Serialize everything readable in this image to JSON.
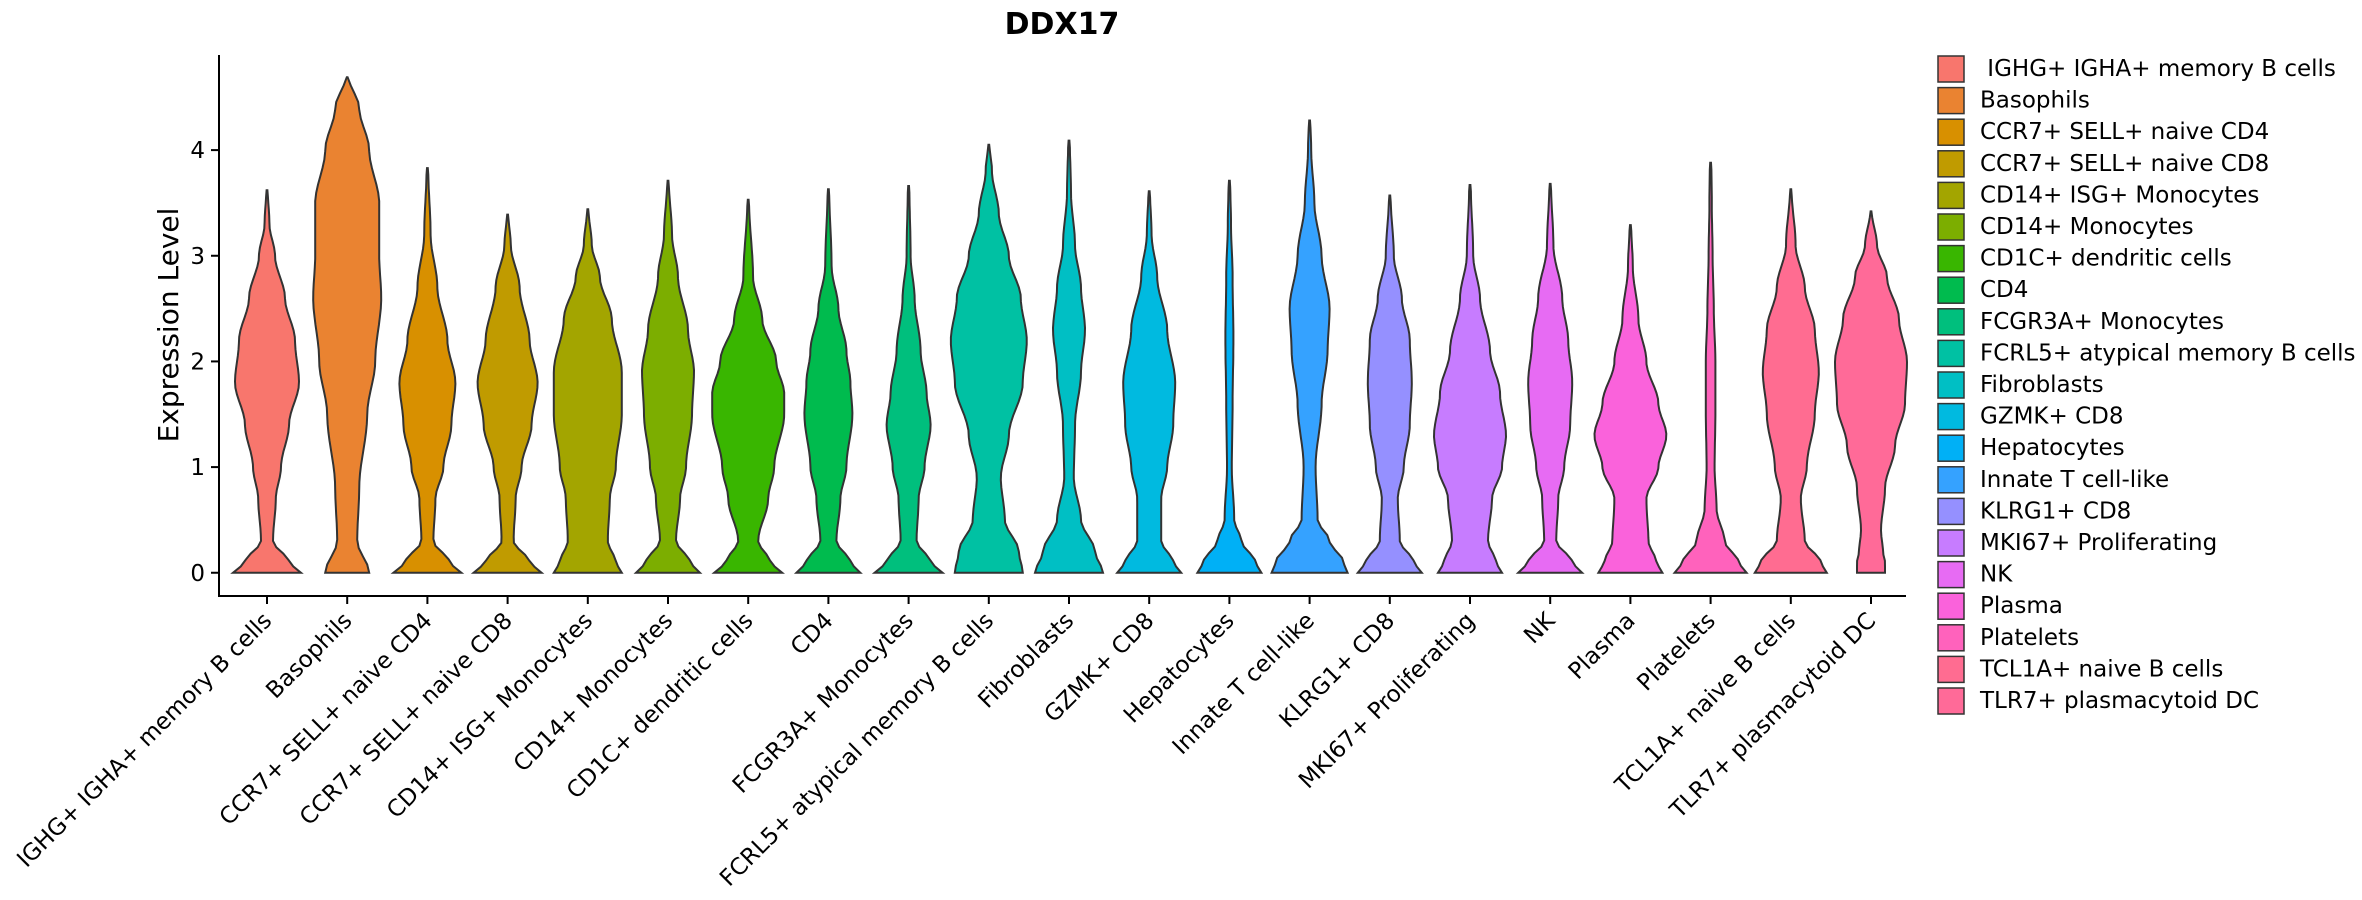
{
  "chart_data": {
    "type": "violin",
    "title": "DDX17",
    "xlabel": "",
    "ylabel": "Expression Level",
    "ylim": [
      -0.22,
      4.9
    ],
    "yticks": [
      0,
      1,
      2,
      3,
      4
    ],
    "grid": false,
    "legend_position": "right",
    "categories": [
      " IGHG+ IGHA+ memory B cells",
      "Basophils",
      "CCR7+ SELL+ naive CD4",
      "CCR7+ SELL+ naive CD8",
      "CD14+ ISG+ Monocytes",
      "CD14+ Monocytes",
      "CD1C+ dendritic cells",
      "CD4",
      "FCGR3A+ Monocytes",
      "FCRL5+ atypical memory B cells",
      "Fibroblasts",
      "GZMK+ CD8",
      "Hepatocytes",
      "Innate T cell-like",
      "KLRG1+ CD8",
      "MKI67+ Proliferating",
      "NK",
      "Plasma",
      "Platelets",
      "TCL1A+ naive B cells",
      "TLR7+ plasmacytoid DC"
    ],
    "colors": [
      "#F8766D",
      "#EA8331",
      "#D89000",
      "#C09B00",
      "#A3A500",
      "#7CAE00",
      "#39B600",
      "#00BB4E",
      "#00BF7D",
      "#00C1A3",
      "#00BFC4",
      "#00BAE0",
      "#00B0F6",
      "#35A2FF",
      "#9590FF",
      "#C77CFF",
      "#E76BF3",
      "#FA62DB",
      "#FF62BC",
      "#FF6C91",
      "#FF6A98"
    ],
    "max_values": [
      3.62,
      4.69,
      3.83,
      3.39,
      3.44,
      3.71,
      3.53,
      3.63,
      3.66,
      4.05,
      4.09,
      3.61,
      3.71,
      4.28,
      3.57,
      3.67,
      3.68,
      3.29,
      3.88,
      3.63,
      3.42
    ],
    "density_profiles": [
      [
        [
          0,
          0.85
        ],
        [
          0.1,
          0.55
        ],
        [
          0.3,
          0.15
        ],
        [
          0.7,
          0.22
        ],
        [
          1.0,
          0.35
        ],
        [
          1.4,
          0.55
        ],
        [
          1.8,
          0.8
        ],
        [
          2.2,
          0.7
        ],
        [
          2.6,
          0.45
        ],
        [
          3.0,
          0.2
        ],
        [
          3.3,
          0.06
        ],
        [
          3.62,
          0.02
        ]
      ],
      [
        [
          0,
          0.55
        ],
        [
          0.3,
          0.25
        ],
        [
          0.8,
          0.3
        ],
        [
          1.5,
          0.5
        ],
        [
          2.0,
          0.7
        ],
        [
          2.6,
          0.85
        ],
        [
          3.0,
          0.8
        ],
        [
          3.5,
          0.8
        ],
        [
          4.0,
          0.55
        ],
        [
          4.4,
          0.3
        ],
        [
          4.69,
          0.04
        ]
      ],
      [
        [
          0,
          0.85
        ],
        [
          0.1,
          0.55
        ],
        [
          0.3,
          0.15
        ],
        [
          0.7,
          0.2
        ],
        [
          1.0,
          0.4
        ],
        [
          1.4,
          0.6
        ],
        [
          1.8,
          0.7
        ],
        [
          2.2,
          0.5
        ],
        [
          2.7,
          0.25
        ],
        [
          3.2,
          0.08
        ],
        [
          3.83,
          0.02
        ]
      ],
      [
        [
          0,
          0.85
        ],
        [
          0.1,
          0.55
        ],
        [
          0.3,
          0.15
        ],
        [
          0.7,
          0.2
        ],
        [
          1.0,
          0.35
        ],
        [
          1.4,
          0.6
        ],
        [
          1.8,
          0.75
        ],
        [
          2.2,
          0.55
        ],
        [
          2.7,
          0.3
        ],
        [
          3.1,
          0.08
        ],
        [
          3.39,
          0.02
        ]
      ],
      [
        [
          0,
          0.85
        ],
        [
          0.1,
          0.7
        ],
        [
          0.3,
          0.5
        ],
        [
          0.7,
          0.55
        ],
        [
          1.0,
          0.7
        ],
        [
          1.5,
          0.85
        ],
        [
          1.9,
          0.85
        ],
        [
          2.4,
          0.6
        ],
        [
          2.8,
          0.3
        ],
        [
          3.1,
          0.1
        ],
        [
          3.44,
          0.02
        ]
      ],
      [
        [
          0,
          0.8
        ],
        [
          0.1,
          0.55
        ],
        [
          0.3,
          0.2
        ],
        [
          0.7,
          0.3
        ],
        [
          1.0,
          0.45
        ],
        [
          1.5,
          0.6
        ],
        [
          1.9,
          0.65
        ],
        [
          2.3,
          0.5
        ],
        [
          2.8,
          0.25
        ],
        [
          3.2,
          0.1
        ],
        [
          3.71,
          0.02
        ]
      ],
      [
        [
          0,
          0.85
        ],
        [
          0.1,
          0.55
        ],
        [
          0.3,
          0.25
        ],
        [
          0.7,
          0.5
        ],
        [
          1.0,
          0.65
        ],
        [
          1.5,
          0.9
        ],
        [
          1.7,
          0.9
        ],
        [
          2.0,
          0.7
        ],
        [
          2.4,
          0.35
        ],
        [
          2.8,
          0.12
        ],
        [
          3.53,
          0.02
        ]
      ],
      [
        [
          0,
          0.8
        ],
        [
          0.1,
          0.55
        ],
        [
          0.3,
          0.2
        ],
        [
          0.7,
          0.3
        ],
        [
          1.0,
          0.45
        ],
        [
          1.5,
          0.6
        ],
        [
          1.8,
          0.55
        ],
        [
          2.1,
          0.45
        ],
        [
          2.5,
          0.25
        ],
        [
          2.9,
          0.08
        ],
        [
          3.63,
          0.02
        ]
      ],
      [
        [
          0,
          0.85
        ],
        [
          0.1,
          0.55
        ],
        [
          0.3,
          0.2
        ],
        [
          0.7,
          0.25
        ],
        [
          1.0,
          0.4
        ],
        [
          1.4,
          0.55
        ],
        [
          1.7,
          0.45
        ],
        [
          2.1,
          0.3
        ],
        [
          2.6,
          0.15
        ],
        [
          3.0,
          0.05
        ],
        [
          3.66,
          0.02
        ]
      ],
      [
        [
          0,
          0.85
        ],
        [
          0.2,
          0.75
        ],
        [
          0.5,
          0.4
        ],
        [
          0.9,
          0.3
        ],
        [
          1.3,
          0.5
        ],
        [
          1.8,
          0.85
        ],
        [
          2.2,
          0.95
        ],
        [
          2.6,
          0.8
        ],
        [
          3.0,
          0.5
        ],
        [
          3.4,
          0.25
        ],
        [
          3.8,
          0.08
        ],
        [
          4.05,
          0.02
        ]
      ],
      [
        [
          0,
          0.85
        ],
        [
          0.2,
          0.65
        ],
        [
          0.5,
          0.3
        ],
        [
          0.9,
          0.12
        ],
        [
          1.4,
          0.15
        ],
        [
          1.9,
          0.3
        ],
        [
          2.3,
          0.4
        ],
        [
          2.7,
          0.3
        ],
        [
          3.1,
          0.15
        ],
        [
          3.6,
          0.05
        ],
        [
          4.09,
          0.02
        ]
      ],
      [
        [
          0,
          0.8
        ],
        [
          0.1,
          0.6
        ],
        [
          0.3,
          0.3
        ],
        [
          0.7,
          0.3
        ],
        [
          1.0,
          0.45
        ],
        [
          1.4,
          0.6
        ],
        [
          1.8,
          0.65
        ],
        [
          2.3,
          0.45
        ],
        [
          2.8,
          0.2
        ],
        [
          3.2,
          0.06
        ],
        [
          3.61,
          0.02
        ]
      ],
      [
        [
          0,
          0.8
        ],
        [
          0.1,
          0.65
        ],
        [
          0.3,
          0.3
        ],
        [
          0.5,
          0.12
        ],
        [
          1.0,
          0.06
        ],
        [
          1.6,
          0.08
        ],
        [
          2.2,
          0.1
        ],
        [
          2.8,
          0.08
        ],
        [
          3.3,
          0.04
        ],
        [
          3.71,
          0.02
        ]
      ],
      [
        [
          0,
          0.95
        ],
        [
          0.1,
          0.85
        ],
        [
          0.3,
          0.5
        ],
        [
          0.5,
          0.2
        ],
        [
          1.0,
          0.15
        ],
        [
          1.6,
          0.3
        ],
        [
          2.1,
          0.45
        ],
        [
          2.5,
          0.5
        ],
        [
          3.0,
          0.3
        ],
        [
          3.5,
          0.12
        ],
        [
          4.0,
          0.04
        ],
        [
          4.28,
          0.02
        ]
      ],
      [
        [
          0,
          0.8
        ],
        [
          0.1,
          0.6
        ],
        [
          0.3,
          0.25
        ],
        [
          0.7,
          0.2
        ],
        [
          1.0,
          0.35
        ],
        [
          1.4,
          0.5
        ],
        [
          1.8,
          0.55
        ],
        [
          2.2,
          0.5
        ],
        [
          2.6,
          0.3
        ],
        [
          3.0,
          0.1
        ],
        [
          3.57,
          0.02
        ]
      ],
      [
        [
          0,
          0.8
        ],
        [
          0.1,
          0.65
        ],
        [
          0.3,
          0.45
        ],
        [
          0.7,
          0.55
        ],
        [
          1.0,
          0.8
        ],
        [
          1.3,
          0.9
        ],
        [
          1.7,
          0.75
        ],
        [
          2.1,
          0.5
        ],
        [
          2.6,
          0.25
        ],
        [
          3.0,
          0.08
        ],
        [
          3.67,
          0.02
        ]
      ],
      [
        [
          0,
          0.8
        ],
        [
          0.1,
          0.55
        ],
        [
          0.3,
          0.15
        ],
        [
          0.7,
          0.2
        ],
        [
          1.0,
          0.35
        ],
        [
          1.4,
          0.5
        ],
        [
          1.8,
          0.55
        ],
        [
          2.2,
          0.45
        ],
        [
          2.6,
          0.3
        ],
        [
          3.1,
          0.08
        ],
        [
          3.68,
          0.02
        ]
      ],
      [
        [
          0,
          0.8
        ],
        [
          0.1,
          0.65
        ],
        [
          0.3,
          0.45
        ],
        [
          0.7,
          0.4
        ],
        [
          1.0,
          0.7
        ],
        [
          1.3,
          0.9
        ],
        [
          1.6,
          0.7
        ],
        [
          2.0,
          0.4
        ],
        [
          2.4,
          0.2
        ],
        [
          2.9,
          0.06
        ],
        [
          3.29,
          0.02
        ]
      ],
      [
        [
          0,
          0.9
        ],
        [
          0.1,
          0.7
        ],
        [
          0.3,
          0.35
        ],
        [
          0.6,
          0.15
        ],
        [
          1.0,
          0.1
        ],
        [
          1.5,
          0.12
        ],
        [
          2.0,
          0.12
        ],
        [
          2.5,
          0.08
        ],
        [
          3.0,
          0.05
        ],
        [
          3.5,
          0.03
        ],
        [
          3.88,
          0.02
        ]
      ],
      [
        [
          0,
          0.9
        ],
        [
          0.1,
          0.75
        ],
        [
          0.3,
          0.35
        ],
        [
          0.7,
          0.25
        ],
        [
          1.0,
          0.4
        ],
        [
          1.5,
          0.6
        ],
        [
          1.9,
          0.7
        ],
        [
          2.3,
          0.6
        ],
        [
          2.7,
          0.35
        ],
        [
          3.1,
          0.12
        ],
        [
          3.63,
          0.02
        ]
      ],
      [
        [
          0,
          0.35
        ],
        [
          0.1,
          0.35
        ],
        [
          0.2,
          0.3
        ],
        [
          0.4,
          0.25
        ],
        [
          0.8,
          0.35
        ],
        [
          1.2,
          0.6
        ],
        [
          1.6,
          0.85
        ],
        [
          2.0,
          0.9
        ],
        [
          2.4,
          0.7
        ],
        [
          2.8,
          0.4
        ],
        [
          3.1,
          0.15
        ],
        [
          3.42,
          0.02
        ]
      ]
    ]
  }
}
